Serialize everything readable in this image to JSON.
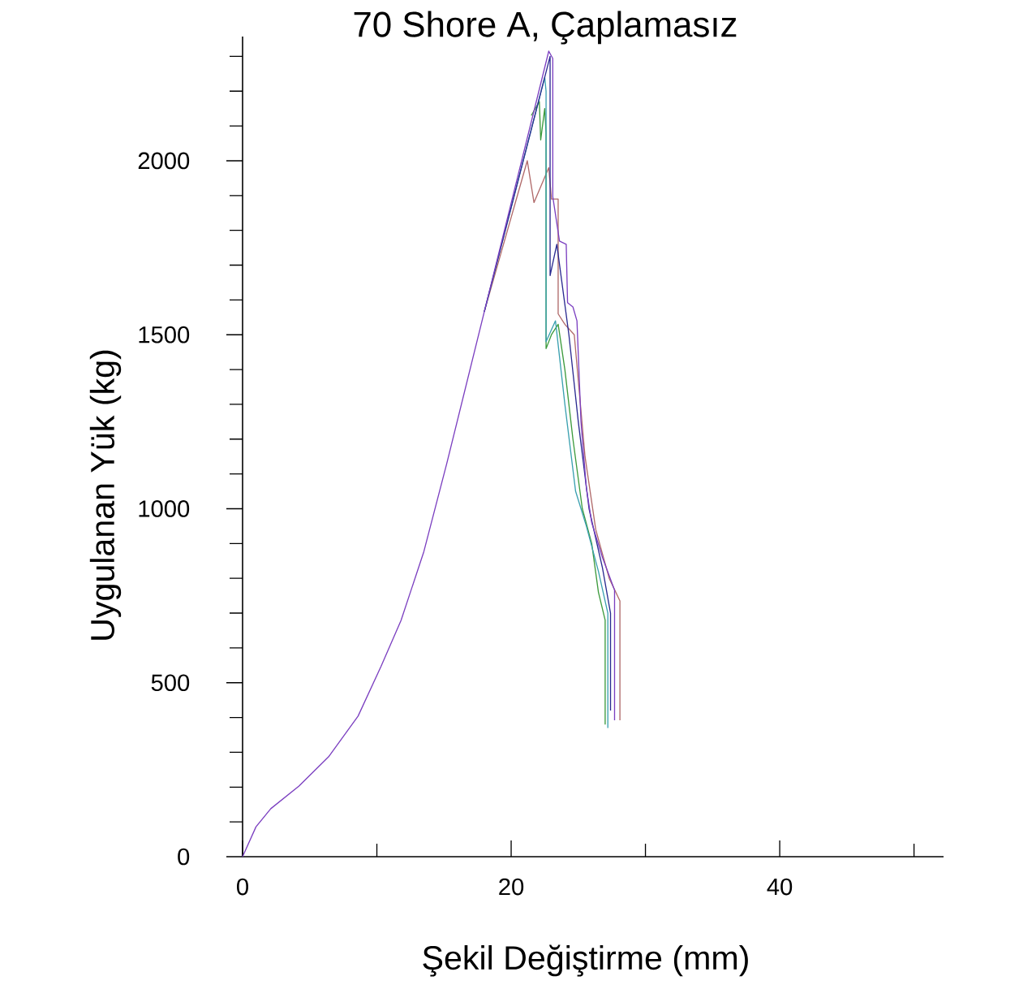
{
  "chart_data": {
    "type": "line",
    "title": "70 Shore A, Çaplamasız",
    "xlabel": "Şekil Değiştirme (mm)",
    "ylabel": "Uygulanan Yük (kg)",
    "xlim": [
      0,
      52.2
    ],
    "ylim": [
      0,
      2357
    ],
    "xticks": [
      0,
      {
        "value": 10,
        "label": null
      },
      20,
      {
        "value": 30,
        "label": null
      },
      40,
      {
        "value": 50,
        "label": null
      }
    ],
    "yticks": [
      0,
      {
        "value": 100,
        "label": null
      },
      {
        "value": 200,
        "label": null
      },
      {
        "value": 300,
        "label": null
      },
      {
        "value": 400,
        "label": null
      },
      500,
      {
        "value": 600,
        "label": null
      },
      {
        "value": 700,
        "label": null
      },
      {
        "value": 800,
        "label": null
      },
      {
        "value": 900,
        "label": null
      },
      1000,
      {
        "value": 1100,
        "label": null
      },
      {
        "value": 1200,
        "label": null
      },
      {
        "value": 1300,
        "label": null
      },
      {
        "value": 1400,
        "label": null
      },
      1500,
      {
        "value": 1600,
        "label": null
      },
      {
        "value": 1700,
        "label": null
      },
      {
        "value": 1800,
        "label": null
      },
      {
        "value": 1900,
        "label": null
      },
      2000,
      {
        "value": 2100,
        "label": null
      },
      {
        "value": 2200,
        "label": null
      },
      {
        "value": 2300,
        "label": null
      }
    ],
    "grid": false,
    "marker": "none",
    "line_style": "solid",
    "series": [
      {
        "color": "#b06a6a",
        "x": [
          18,
          21.2,
          21.7,
          22.8,
          23.0,
          23.5,
          23.5,
          24.0,
          24.7,
          25.5,
          26.3,
          27.3,
          28.1,
          28.1
        ],
        "values": [
          1566,
          2000,
          1880,
          1980,
          1890,
          1890,
          1560,
          1530,
          1500,
          1150,
          940,
          800,
          735,
          392
        ]
      },
      {
        "color": "#3c9a3c",
        "x": [
          21.5,
          22.1,
          22.2,
          22.5,
          22.6,
          22.6,
          23.0,
          23.5,
          24.0,
          24.6,
          25.3,
          26.0,
          26.5,
          27.0,
          27.0
        ],
        "values": [
          2130,
          2170,
          2060,
          2150,
          2080,
          1460,
          1500,
          1530,
          1400,
          1200,
          1000,
          900,
          760,
          680,
          380
        ]
      },
      {
        "color": "#3aa0b0",
        "x": [
          18,
          22.5,
          22.6,
          22.6,
          23.3,
          24.0,
          24.8,
          25.6,
          26.5,
          27.2,
          27.2
        ],
        "values": [
          1566,
          2240,
          2200,
          1480,
          1540,
          1300,
          1050,
          950,
          820,
          700,
          370
        ]
      },
      {
        "color": "#2a2a90",
        "x": [
          18,
          22.9,
          22.9,
          23.4,
          24.3,
          25.0,
          25.8,
          26.8,
          27.4,
          27.4
        ],
        "values": [
          1566,
          2300,
          1670,
          1760,
          1500,
          1250,
          1000,
          830,
          700,
          420
        ]
      },
      {
        "color": "#7b3fc0",
        "x": [
          0,
          1,
          2.1,
          4.2,
          6.4,
          8.6,
          10.3,
          11.8,
          13.5,
          15.2,
          18,
          22.8,
          23.1,
          23.1,
          23.6,
          24.1,
          24.2,
          24.6,
          24.9,
          25.2,
          25.6,
          26.0,
          26.8,
          27.7,
          27.7
        ],
        "values": [
          0,
          86,
          138,
          203,
          287,
          404,
          546,
          679,
          877,
          1129,
          1566,
          2315,
          2294,
          1897,
          1769,
          1760,
          1592,
          1580,
          1540,
          1250,
          1060,
          960,
          860,
          766,
          392
        ]
      }
    ]
  }
}
